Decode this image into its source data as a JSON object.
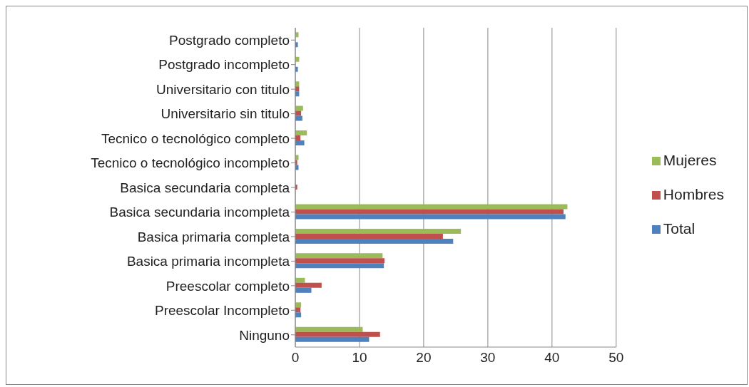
{
  "chart_data": {
    "type": "bar",
    "orientation": "horizontal",
    "categories": [
      "Postgrado completo",
      "Postgrado incompleto",
      "Universitario con titulo",
      "Universitario sin titulo",
      "Tecnico  o tecnológico completo",
      "Tecnico o tecnológico incompleto",
      "Basica secundaria completa",
      "Basica secundaria incompleta",
      "Basica primaria completa",
      "Basica primaria incompleta",
      "Preescolar completo",
      "Preescolar Incompleto",
      "Ninguno"
    ],
    "series": [
      {
        "name": "Mujeres",
        "color": "#9bbb59",
        "values": [
          0.5,
          0.6,
          0.6,
          1.2,
          1.8,
          0.5,
          0,
          42.4,
          25.8,
          13.6,
          1.5,
          0.9,
          10.5
        ]
      },
      {
        "name": "Hombres",
        "color": "#c0504d",
        "values": [
          0,
          0,
          0.6,
          0.9,
          0.8,
          0.3,
          0.3,
          41.8,
          23.0,
          13.9,
          4.1,
          0.8,
          13.2
        ]
      },
      {
        "name": "Total",
        "color": "#4f81bd",
        "values": [
          0.4,
          0.4,
          0.6,
          1.1,
          1.4,
          0.5,
          0,
          42.1,
          24.6,
          13.8,
          2.5,
          0.9,
          11.5
        ]
      }
    ],
    "xlim": [
      0,
      50
    ],
    "xticks": [
      0,
      10,
      20,
      30,
      40,
      50
    ],
    "grid": "x",
    "legend": "right"
  }
}
